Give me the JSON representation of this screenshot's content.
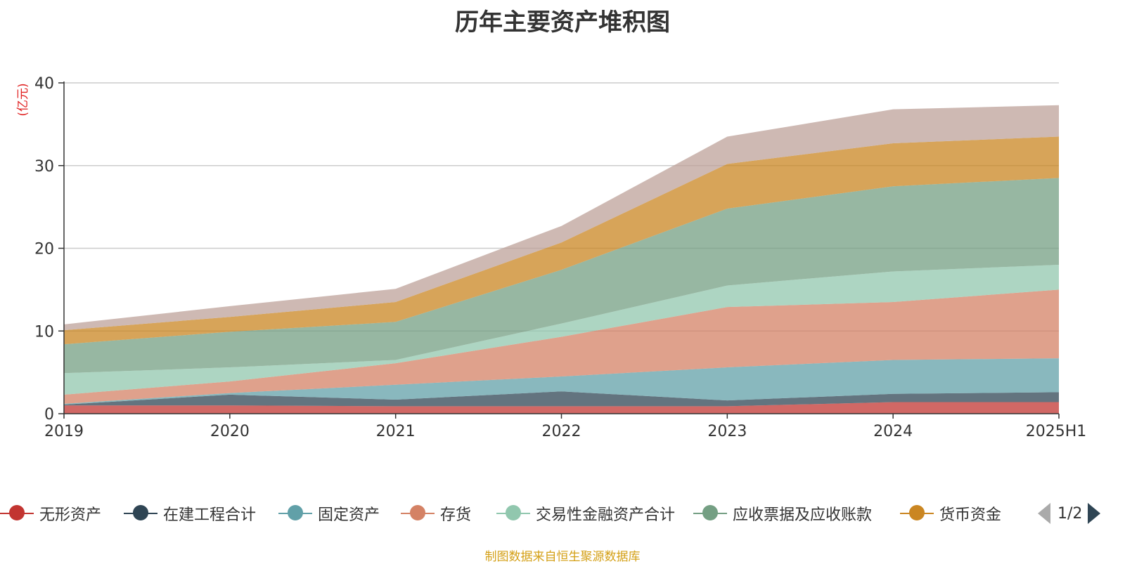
{
  "title": "历年主要资产堆积图",
  "source": "制图数据来自恒生聚源数据库",
  "legend_page": "1/2",
  "chart_data": {
    "type": "area",
    "stacked": true,
    "title": "历年主要资产堆积图",
    "ylabel": "(亿元)",
    "ylim": [
      0,
      40
    ],
    "yticks": [
      0,
      10,
      20,
      30,
      40
    ],
    "grid": true,
    "legend_position": "bottom",
    "categories": [
      "2019",
      "2020",
      "2021",
      "2022",
      "2023",
      "2024",
      "2025H1"
    ],
    "series": [
      {
        "name": "无形资产",
        "color": "#c23531",
        "values": [
          1.0,
          1.0,
          0.9,
          0.9,
          0.9,
          1.4,
          1.4
        ]
      },
      {
        "name": "在建工程合计",
        "color": "#2f4554",
        "values": [
          0.1,
          1.3,
          0.8,
          1.8,
          0.7,
          1.0,
          1.2
        ]
      },
      {
        "name": "固定资产",
        "color": "#61a0a8",
        "values": [
          0.1,
          0.2,
          1.8,
          1.8,
          4.0,
          4.1,
          4.1
        ]
      },
      {
        "name": "存货",
        "color": "#d48265",
        "values": [
          1.1,
          1.4,
          2.6,
          4.8,
          7.3,
          7.0,
          8.3
        ]
      },
      {
        "name": "交易性金融资产合计",
        "color": "#91c7ae",
        "values": [
          2.6,
          1.7,
          0.4,
          1.6,
          2.6,
          3.7,
          3.0
        ]
      },
      {
        "name": "应收票据及应收账款",
        "color": "#749f83",
        "values": [
          3.5,
          4.3,
          4.6,
          6.5,
          9.3,
          10.3,
          10.5
        ]
      },
      {
        "name": "货币资金",
        "color": "#ca8622",
        "values": [
          1.7,
          1.8,
          2.4,
          3.3,
          5.4,
          5.2,
          5.0
        ]
      },
      {
        "name": "",
        "color": "#bda29a",
        "values": [
          0.7,
          1.3,
          1.6,
          2.0,
          3.3,
          4.1,
          3.8
        ]
      }
    ]
  }
}
